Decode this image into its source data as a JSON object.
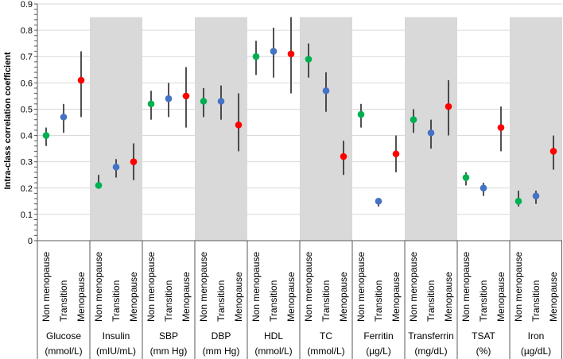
{
  "chart_data": {
    "type": "scatter",
    "ylabel": "Intra-class correlation coefficient",
    "ylim": [
      0,
      0.9
    ],
    "yticks": [
      0,
      0.1,
      0.2,
      0.3,
      0.4,
      0.5,
      0.6,
      0.7,
      0.8,
      0.9
    ],
    "ytick_labels": [
      "0",
      "0.1",
      "0.2",
      "0.3",
      "0.4",
      "0.5",
      "0.6",
      "0.7",
      "0.8",
      "0.9"
    ],
    "grid": true,
    "subcategories": [
      "Non menopause",
      "Transition",
      "Menopause"
    ],
    "series_colors": [
      "#00b050",
      "#4472c4",
      "#ff0000"
    ],
    "shade_color": "#d9d9d9",
    "groups": [
      {
        "name": "Glucose",
        "unit": "(mmol/L)",
        "shaded": false,
        "values": [
          0.4,
          0.47,
          0.61
        ],
        "lower": [
          0.36,
          0.41,
          0.47
        ],
        "upper": [
          0.43,
          0.52,
          0.72
        ]
      },
      {
        "name": "Insulin",
        "unit": "(mIU/mL)",
        "shaded": true,
        "values": [
          0.21,
          0.28,
          0.3
        ],
        "lower": [
          0.21,
          0.24,
          0.23
        ],
        "upper": [
          0.25,
          0.31,
          0.37
        ]
      },
      {
        "name": "SBP",
        "unit": "(mm Hg)",
        "shaded": false,
        "values": [
          0.52,
          0.54,
          0.55
        ],
        "lower": [
          0.46,
          0.47,
          0.43
        ],
        "upper": [
          0.57,
          0.6,
          0.66
        ]
      },
      {
        "name": "DBP",
        "unit": "(mm Hg)",
        "shaded": true,
        "values": [
          0.53,
          0.53,
          0.44
        ],
        "lower": [
          0.47,
          0.46,
          0.34
        ],
        "upper": [
          0.58,
          0.59,
          0.56
        ]
      },
      {
        "name": "HDL",
        "unit": "(mmol/L)",
        "shaded": false,
        "values": [
          0.7,
          0.72,
          0.71
        ],
        "lower": [
          0.63,
          0.62,
          0.56
        ],
        "upper": [
          0.76,
          0.81,
          0.85
        ]
      },
      {
        "name": "TC",
        "unit": "(mmol/L)",
        "shaded": true,
        "values": [
          0.69,
          0.57,
          0.32
        ],
        "lower": [
          0.62,
          0.49,
          0.25
        ],
        "upper": [
          0.75,
          0.64,
          0.38
        ]
      },
      {
        "name": "Ferritin",
        "unit": "(µg/L)",
        "shaded": false,
        "values": [
          0.48,
          0.15,
          0.33
        ],
        "lower": [
          0.43,
          0.13,
          0.26
        ],
        "upper": [
          0.52,
          0.15,
          0.4
        ]
      },
      {
        "name": "Transferrin",
        "unit": "(mg/dL)",
        "shaded": true,
        "values": [
          0.46,
          0.41,
          0.51
        ],
        "lower": [
          0.41,
          0.35,
          0.4
        ],
        "upper": [
          0.5,
          0.46,
          0.61
        ]
      },
      {
        "name": "TSAT",
        "unit": "(%)",
        "shaded": false,
        "values": [
          0.24,
          0.2,
          0.43
        ],
        "lower": [
          0.21,
          0.17,
          0.34
        ],
        "upper": [
          0.26,
          0.22,
          0.51
        ]
      },
      {
        "name": "Iron",
        "unit": "(µg/dL)",
        "shaded": true,
        "values": [
          0.15,
          0.17,
          0.34
        ],
        "lower": [
          0.13,
          0.14,
          0.27
        ],
        "upper": [
          0.19,
          0.19,
          0.4
        ]
      }
    ]
  }
}
